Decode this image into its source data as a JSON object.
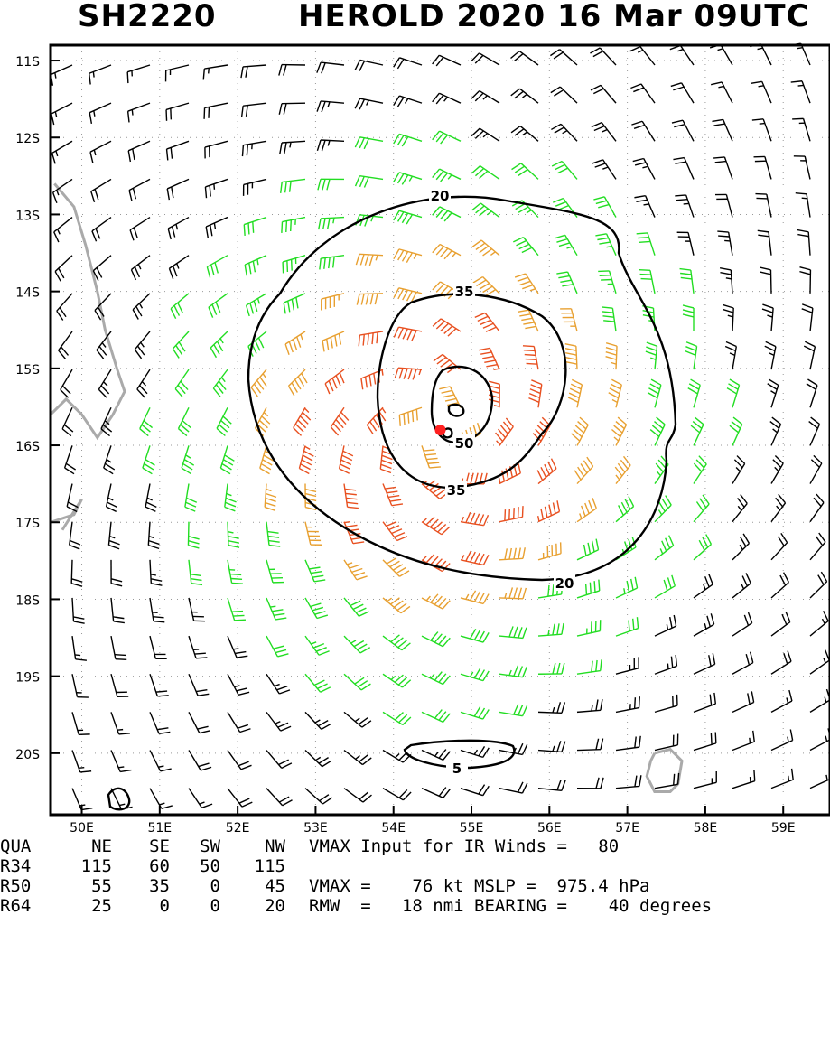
{
  "title": {
    "storm_id": "SH2220",
    "name_time": "HEROLD 2020 16 Mar 09UTC"
  },
  "map": {
    "lat_labels": [
      "11S",
      "12S",
      "13S",
      "14S",
      "15S",
      "16S",
      "17S",
      "18S",
      "19S",
      "20S"
    ],
    "lon_labels": [
      "50E",
      "51E",
      "52E",
      "53E",
      "54E",
      "55E",
      "56E",
      "57E",
      "58E",
      "59E"
    ],
    "lon_range": [
      49.6,
      59.6
    ],
    "lat_range": [
      -10.8,
      -20.8
    ],
    "center": {
      "lon": 54.6,
      "lat": -15.8
    },
    "contour_labels": [
      "20",
      "35",
      "50",
      "35",
      "20",
      "5"
    ],
    "colors": {
      "barb_low": "#000000",
      "barb_34": "#22dd22",
      "barb_50": "#e8a030",
      "barb_64": "#e85020",
      "coast": "#aaaaaa",
      "center": "#ff2020",
      "contour": "#000000"
    }
  },
  "footer": {
    "header": {
      "label": "QUA",
      "ne": "NE",
      "se": "SE",
      "sw": "SW",
      "nw": "NW",
      "info": "VMAX Input for IR Winds =   80"
    },
    "rows": [
      {
        "label": "R34",
        "ne": "115",
        "se": "60",
        "sw": "50",
        "nw": "115",
        "info": ""
      },
      {
        "label": "R50",
        "ne": "55",
        "se": "35",
        "sw": "0",
        "nw": "45",
        "info": "VMAX =    76 kt MSLP =  975.4 hPa"
      },
      {
        "label": "R64",
        "ne": "25",
        "se": "0",
        "sw": "0",
        "nw": "20",
        "info": "RMW  =   18 nmi BEARING =    40 degrees"
      }
    ]
  }
}
